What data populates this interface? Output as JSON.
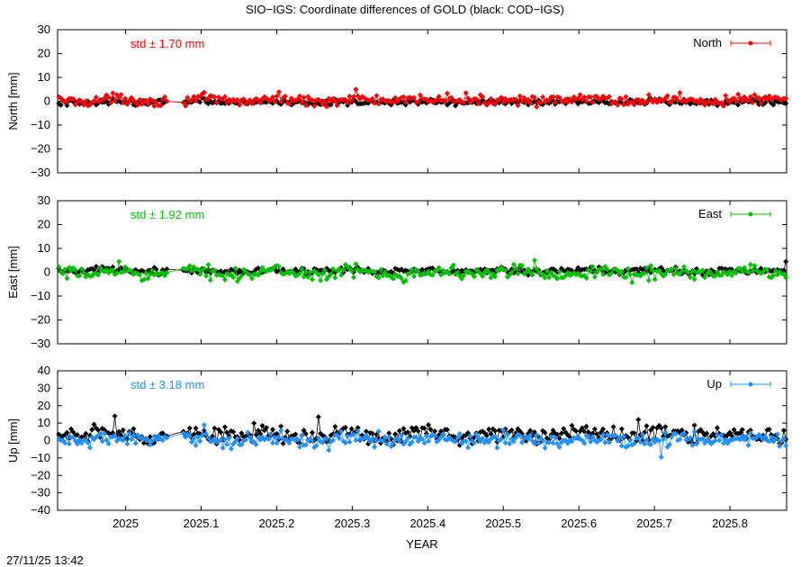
{
  "title": "SIO−IGS: Coordinate differences of GOLD (black: COD−IGS)",
  "timestamp": "27/11/25 13:42",
  "chart_data": {
    "type": "scatter",
    "xlabel": "YEAR",
    "xlim": [
      2024.91,
      2025.875
    ],
    "xticks": [
      2025.0,
      2025.1,
      2025.2,
      2025.3,
      2025.4,
      2025.5,
      2025.6,
      2025.7,
      2025.8
    ],
    "xtick_labels": [
      "2025",
      "2025.1",
      "2025.2",
      "2025.3",
      "2025.4",
      "2025.5",
      "2025.6",
      "2025.7",
      "2025.8"
    ],
    "gap": [
      2025.055,
      2025.074
    ],
    "panels": [
      {
        "id": "north",
        "ylabel": "North [mm]",
        "ylim": [
          -30,
          30
        ],
        "yticks": [
          30,
          20,
          10,
          0,
          -10,
          -20,
          -30
        ],
        "ytick_labels": [
          "30",
          "20",
          "10",
          "0",
          "−10",
          "−20",
          "−30"
        ],
        "legend": "North",
        "std_text": "std ± 1.70 mm",
        "color": "#ff0000",
        "series": [
          {
            "name": "SIO−IGS",
            "color": "#ff0000",
            "mean": 0.5,
            "amplitude": 1.6,
            "spikes": [
              [
                2025.305,
                5
              ],
              [
                2025.45,
                3.5
              ]
            ]
          },
          {
            "name": "COD−IGS",
            "color": "#000000",
            "mean": -0.4,
            "amplitude": 0.9,
            "spikes": [
              [
                2025.1,
                1.5
              ]
            ]
          }
        ]
      },
      {
        "id": "east",
        "ylabel": "East [mm]",
        "ylim": [
          -30,
          30
        ],
        "yticks": [
          30,
          20,
          10,
          0,
          -10,
          -20,
          -30
        ],
        "ytick_labels": [
          "30",
          "20",
          "10",
          "0",
          "−10",
          "−20",
          "−30"
        ],
        "legend": "East",
        "std_text": "std ± 1.92 mm",
        "color": "#00c000",
        "series": [
          {
            "name": "SIO−IGS",
            "color": "#00c000",
            "mean": -0.2,
            "amplitude": 2.0,
            "spikes": [
              [
                2025.54,
                5
              ],
              [
                2024.99,
                4.5
              ]
            ]
          },
          {
            "name": "COD−IGS",
            "color": "#000000",
            "mean": 0.6,
            "amplitude": 1.0,
            "spikes": [
              [
                2025.875,
                4.5
              ]
            ]
          }
        ]
      },
      {
        "id": "up",
        "ylabel": "Up [mm]",
        "ylim": [
          -40,
          40
        ],
        "yticks": [
          40,
          30,
          20,
          10,
          0,
          -10,
          -20,
          -30,
          -40
        ],
        "ytick_labels": [
          "40",
          "30",
          "20",
          "10",
          "0",
          "−10",
          "−20",
          "−30",
          "−40"
        ],
        "legend": "Up",
        "std_text": "std ± 3.18 mm",
        "color": "#1e90ff",
        "series": [
          {
            "name": "SIO−IGS",
            "color": "#1e90ff",
            "mean": 0.5,
            "amplitude": 3.0,
            "spikes": [
              [
                2025.105,
                9
              ],
              [
                2025.71,
                -9.5
              ]
            ]
          },
          {
            "name": "COD−IGS",
            "color": "#000000",
            "mean": 3.5,
            "amplitude": 3.5,
            "spikes": [
              [
                2024.985,
                14
              ],
              [
                2025.255,
                13.5
              ],
              [
                2025.68,
                12
              ]
            ]
          }
        ]
      }
    ]
  }
}
